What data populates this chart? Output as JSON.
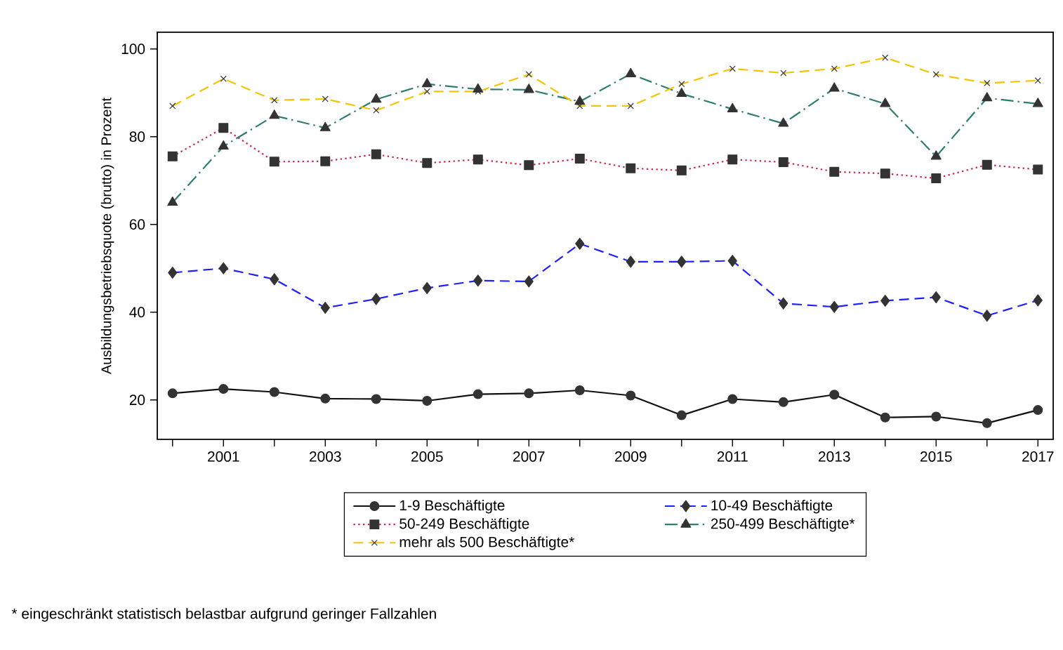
{
  "chart_data": {
    "type": "line",
    "ylabel": "Ausbildungsbetriebsquote (brutto) in Prozent",
    "x": [
      2000,
      2001,
      2002,
      2003,
      2004,
      2005,
      2006,
      2007,
      2008,
      2009,
      2010,
      2011,
      2012,
      2013,
      2014,
      2015,
      2016,
      2017
    ],
    "xlim": [
      1999.7,
      2017.3
    ],
    "xticks": [
      {
        "value": 2000,
        "label": null
      },
      2001,
      {
        "value": 2002,
        "label": null
      },
      2003,
      {
        "value": 2004,
        "label": null
      },
      2005,
      {
        "value": 2006,
        "label": null
      },
      2007,
      {
        "value": 2008,
        "label": null
      },
      2009,
      {
        "value": 2010,
        "label": null
      },
      2011,
      {
        "value": 2012,
        "label": null
      },
      2013,
      {
        "value": 2014,
        "label": null
      },
      2015,
      {
        "value": 2016,
        "label": null
      },
      2017
    ],
    "ylim": [
      11,
      103.8
    ],
    "yticks": [
      20,
      40,
      60,
      80,
      100
    ],
    "legend": "bottom",
    "series": [
      {
        "name": "1-9 Beschäftigte",
        "color": "#111111",
        "marker": "circle",
        "line_style": "solid",
        "values": [
          21.5,
          22.5,
          21.8,
          20.3,
          20.2,
          19.8,
          21.3,
          21.5,
          22.2,
          21,
          16.5,
          20.2,
          19.5,
          21.2,
          16,
          16.2,
          14.7,
          17.7
        ]
      },
      {
        "name": "10-49 Beschäftigte",
        "color": "#1f1fff",
        "marker": "diamond",
        "line_style": "dashed",
        "values": [
          49,
          50,
          47.5,
          41,
          43,
          45.5,
          47.2,
          47,
          55.6,
          51.5,
          51.5,
          51.7,
          42,
          41.2,
          42.6,
          43.4,
          39.2,
          42.7
        ]
      },
      {
        "name": "50-249 Beschäftigte",
        "color": "#d6244c",
        "marker": "square",
        "line_style": "dotted",
        "values": [
          75.5,
          82,
          74.3,
          74.4,
          76,
          74,
          74.8,
          73.5,
          75,
          72.8,
          72.3,
          74.8,
          74.2,
          72,
          71.6,
          70.5,
          73.6,
          72.5
        ]
      },
      {
        "name": "250-499 Beschäftigte*",
        "color": "#2e7d6e",
        "marker": "triangle",
        "line_style": "dashdot",
        "values": [
          65,
          77.8,
          84.8,
          82,
          88.5,
          92,
          90.8,
          90.7,
          88,
          94.3,
          89.8,
          86.3,
          83,
          91,
          87.5,
          75.5,
          88.8,
          87.5
        ]
      },
      {
        "name": "mehr als 500 Beschäftigte*",
        "color": "#f5c400",
        "marker": "cross",
        "line_style": "dashed",
        "values": [
          87,
          93.2,
          88.3,
          88.6,
          86,
          90.3,
          90.3,
          94.2,
          87,
          87,
          92,
          95.5,
          94.5,
          95.5,
          98,
          94.2,
          92.2,
          92.8
        ]
      }
    ],
    "annotations": [
      "* eingeschränkt statistisch belastbar aufgrund geringer Fallzahlen"
    ]
  }
}
